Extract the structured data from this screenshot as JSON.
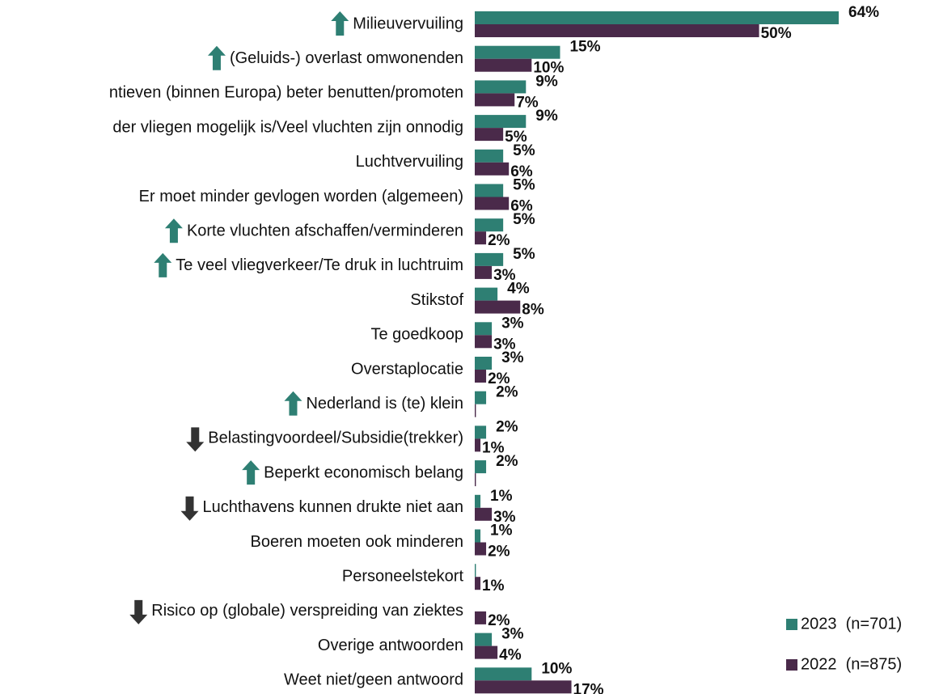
{
  "chart_data": {
    "type": "hbar",
    "categories": [
      "Milieuvervuiling",
      "(Geluids-) overlast omwonenden",
      "ntieven (binnen Europa) beter benutten/promoten",
      "der vliegen mogelijk is/Veel vluchten zijn onnodig",
      "Luchtvervuiling",
      "Er moet minder gevlogen worden (algemeen)",
      "Korte vluchten afschaffen/verminderen",
      "Te veel vliegverkeer/Te druk in luchtruim",
      "Stikstof",
      "Te goedkoop",
      "Overstaplocatie",
      "Nederland is (te) klein",
      "Belastingvoordeel/Subsidie(trekker)",
      "Beperkt economisch belang",
      "Luchthavens kunnen drukte niet aan",
      "Boeren moeten ook minderen",
      "Personeelstekort",
      "Risico op (globale) verspreiding van ziektes",
      "Overige antwoorden",
      "Weet niet/geen antwoord"
    ],
    "trend": [
      "up",
      "up",
      null,
      null,
      null,
      null,
      "up",
      "up",
      null,
      null,
      null,
      "up",
      "down",
      "up",
      "down",
      null,
      null,
      "down",
      null,
      null
    ],
    "series": [
      {
        "name": "2023  (n=701)",
        "color": "#2e7f73",
        "values": [
          64,
          15,
          9,
          9,
          5,
          5,
          5,
          5,
          4,
          3,
          3,
          2,
          2,
          2,
          1,
          1,
          0.2,
          0,
          3,
          10
        ],
        "value_labels": [
          "64%",
          "15%",
          "9%",
          "9%",
          "5%",
          "5%",
          "5%",
          "5%",
          "4%",
          "3%",
          "3%",
          "2%",
          "2%",
          "2%",
          "1%",
          "1%",
          null,
          null,
          "3%",
          "10%"
        ]
      },
      {
        "name": "2022  (n=875)",
        "color": "#4a2a4a",
        "values": [
          50,
          10,
          7,
          5,
          6,
          6,
          2,
          3,
          8,
          3,
          2,
          0.2,
          1,
          0.2,
          3,
          2,
          1,
          2,
          4,
          17
        ],
        "value_labels": [
          "50%",
          "10%",
          "7%",
          "5%",
          "6%",
          "6%",
          "2%",
          "3%",
          "8%",
          "3%",
          "2%",
          null,
          "1%",
          null,
          "3%",
          "2%",
          "1%",
          "2%",
          "4%",
          "17%"
        ]
      }
    ],
    "xlim": [
      0,
      64
    ],
    "arrow_colors": {
      "up": "#2e7f73",
      "down": "#333333"
    }
  }
}
